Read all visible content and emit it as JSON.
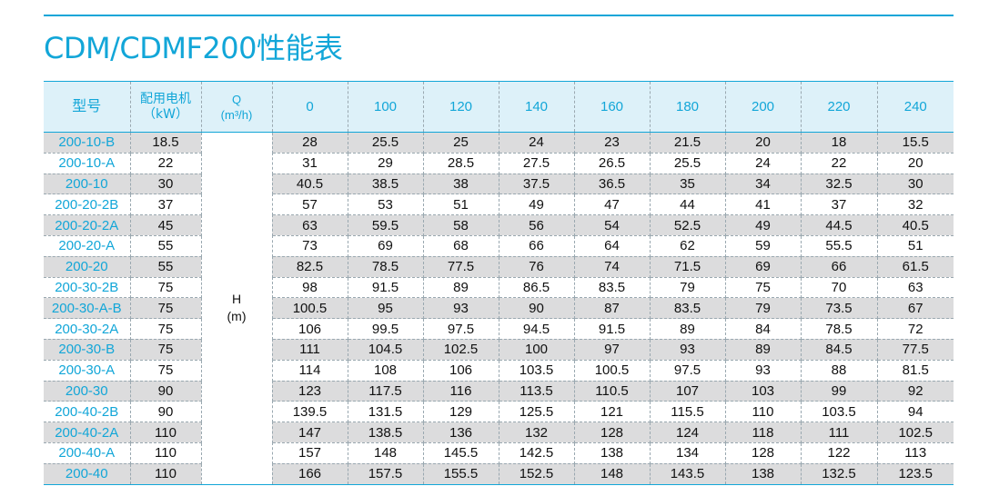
{
  "title": "CDM/CDMF200性能表",
  "colors": {
    "accent": "#12a6d8",
    "row_shade": "#dcdcdd",
    "header_bg": "#ddf1f9"
  },
  "header": {
    "model": "型号",
    "power_line1": "配用电机",
    "power_line2": "（kW）",
    "q_symbol": "Q",
    "q_unit": "(m³/h)",
    "flows": [
      "0",
      "100",
      "120",
      "140",
      "160",
      "180",
      "200",
      "220",
      "240"
    ]
  },
  "h_label": {
    "symbol": "H",
    "unit": "(m)"
  },
  "rows": [
    {
      "model": "200-10-B",
      "power": "18.5",
      "head": [
        "28",
        "25.5",
        "25",
        "24",
        "23",
        "21.5",
        "20",
        "18",
        "15.5"
      ]
    },
    {
      "model": "200-10-A",
      "power": "22",
      "head": [
        "31",
        "29",
        "28.5",
        "27.5",
        "26.5",
        "25.5",
        "24",
        "22",
        "20"
      ]
    },
    {
      "model": "200-10",
      "power": "30",
      "head": [
        "40.5",
        "38.5",
        "38",
        "37.5",
        "36.5",
        "35",
        "34",
        "32.5",
        "30"
      ]
    },
    {
      "model": "200-20-2B",
      "power": "37",
      "head": [
        "57",
        "53",
        "51",
        "49",
        "47",
        "44",
        "41",
        "37",
        "32"
      ]
    },
    {
      "model": "200-20-2A",
      "power": "45",
      "head": [
        "63",
        "59.5",
        "58",
        "56",
        "54",
        "52.5",
        "49",
        "44.5",
        "40.5"
      ]
    },
    {
      "model": "200-20-A",
      "power": "55",
      "head": [
        "73",
        "69",
        "68",
        "66",
        "64",
        "62",
        "59",
        "55.5",
        "51"
      ]
    },
    {
      "model": "200-20",
      "power": "55",
      "head": [
        "82.5",
        "78.5",
        "77.5",
        "76",
        "74",
        "71.5",
        "69",
        "66",
        "61.5"
      ]
    },
    {
      "model": "200-30-2B",
      "power": "75",
      "head": [
        "98",
        "91.5",
        "89",
        "86.5",
        "83.5",
        "79",
        "75",
        "70",
        "63"
      ]
    },
    {
      "model": "200-30-A-B",
      "power": "75",
      "head": [
        "100.5",
        "95",
        "93",
        "90",
        "87",
        "83.5",
        "79",
        "73.5",
        "67"
      ]
    },
    {
      "model": "200-30-2A",
      "power": "75",
      "head": [
        "106",
        "99.5",
        "97.5",
        "94.5",
        "91.5",
        "89",
        "84",
        "78.5",
        "72"
      ]
    },
    {
      "model": "200-30-B",
      "power": "75",
      "head": [
        "111",
        "104.5",
        "102.5",
        "100",
        "97",
        "93",
        "89",
        "84.5",
        "77.5"
      ]
    },
    {
      "model": "200-30-A",
      "power": "75",
      "head": [
        "114",
        "108",
        "106",
        "103.5",
        "100.5",
        "97.5",
        "93",
        "88",
        "81.5"
      ]
    },
    {
      "model": "200-30",
      "power": "90",
      "head": [
        "123",
        "117.5",
        "116",
        "113.5",
        "110.5",
        "107",
        "103",
        "99",
        "92"
      ]
    },
    {
      "model": "200-40-2B",
      "power": "90",
      "head": [
        "139.5",
        "131.5",
        "129",
        "125.5",
        "121",
        "115.5",
        "110",
        "103.5",
        "94"
      ]
    },
    {
      "model": "200-40-2A",
      "power": "110",
      "head": [
        "147",
        "138.5",
        "136",
        "132",
        "128",
        "124",
        "118",
        "111",
        "102.5"
      ]
    },
    {
      "model": "200-40-A",
      "power": "110",
      "head": [
        "157",
        "148",
        "145.5",
        "142.5",
        "138",
        "134",
        "128",
        "122",
        "113"
      ]
    },
    {
      "model": "200-40",
      "power": "110",
      "head": [
        "166",
        "157.5",
        "155.5",
        "152.5",
        "148",
        "143.5",
        "138",
        "132.5",
        "123.5"
      ]
    }
  ]
}
